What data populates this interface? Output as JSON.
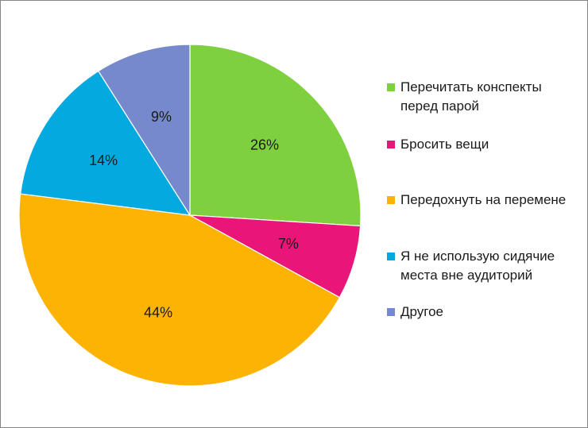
{
  "chart_data": {
    "type": "pie",
    "title": "",
    "start_angle_deg": 0,
    "direction": "clockwise",
    "legend_position": "right",
    "slices": [
      {
        "label": "Перечитать конспекты перед парой",
        "value": 26,
        "value_label": "26%",
        "color": "#7ed03f"
      },
      {
        "label": "Бросить вещи",
        "value": 7,
        "value_label": "7%",
        "color": "#ea1578"
      },
      {
        "label": "Передохнуть на перемене",
        "value": 44,
        "value_label": "44%",
        "color": "#fdb304"
      },
      {
        "label": "Я не использую сидячие места вне аудиторий",
        "value": 14,
        "value_label": "14%",
        "color": "#04a9df"
      },
      {
        "label": "Другое",
        "value": 9,
        "value_label": "9%",
        "color": "#7589cc"
      }
    ]
  }
}
